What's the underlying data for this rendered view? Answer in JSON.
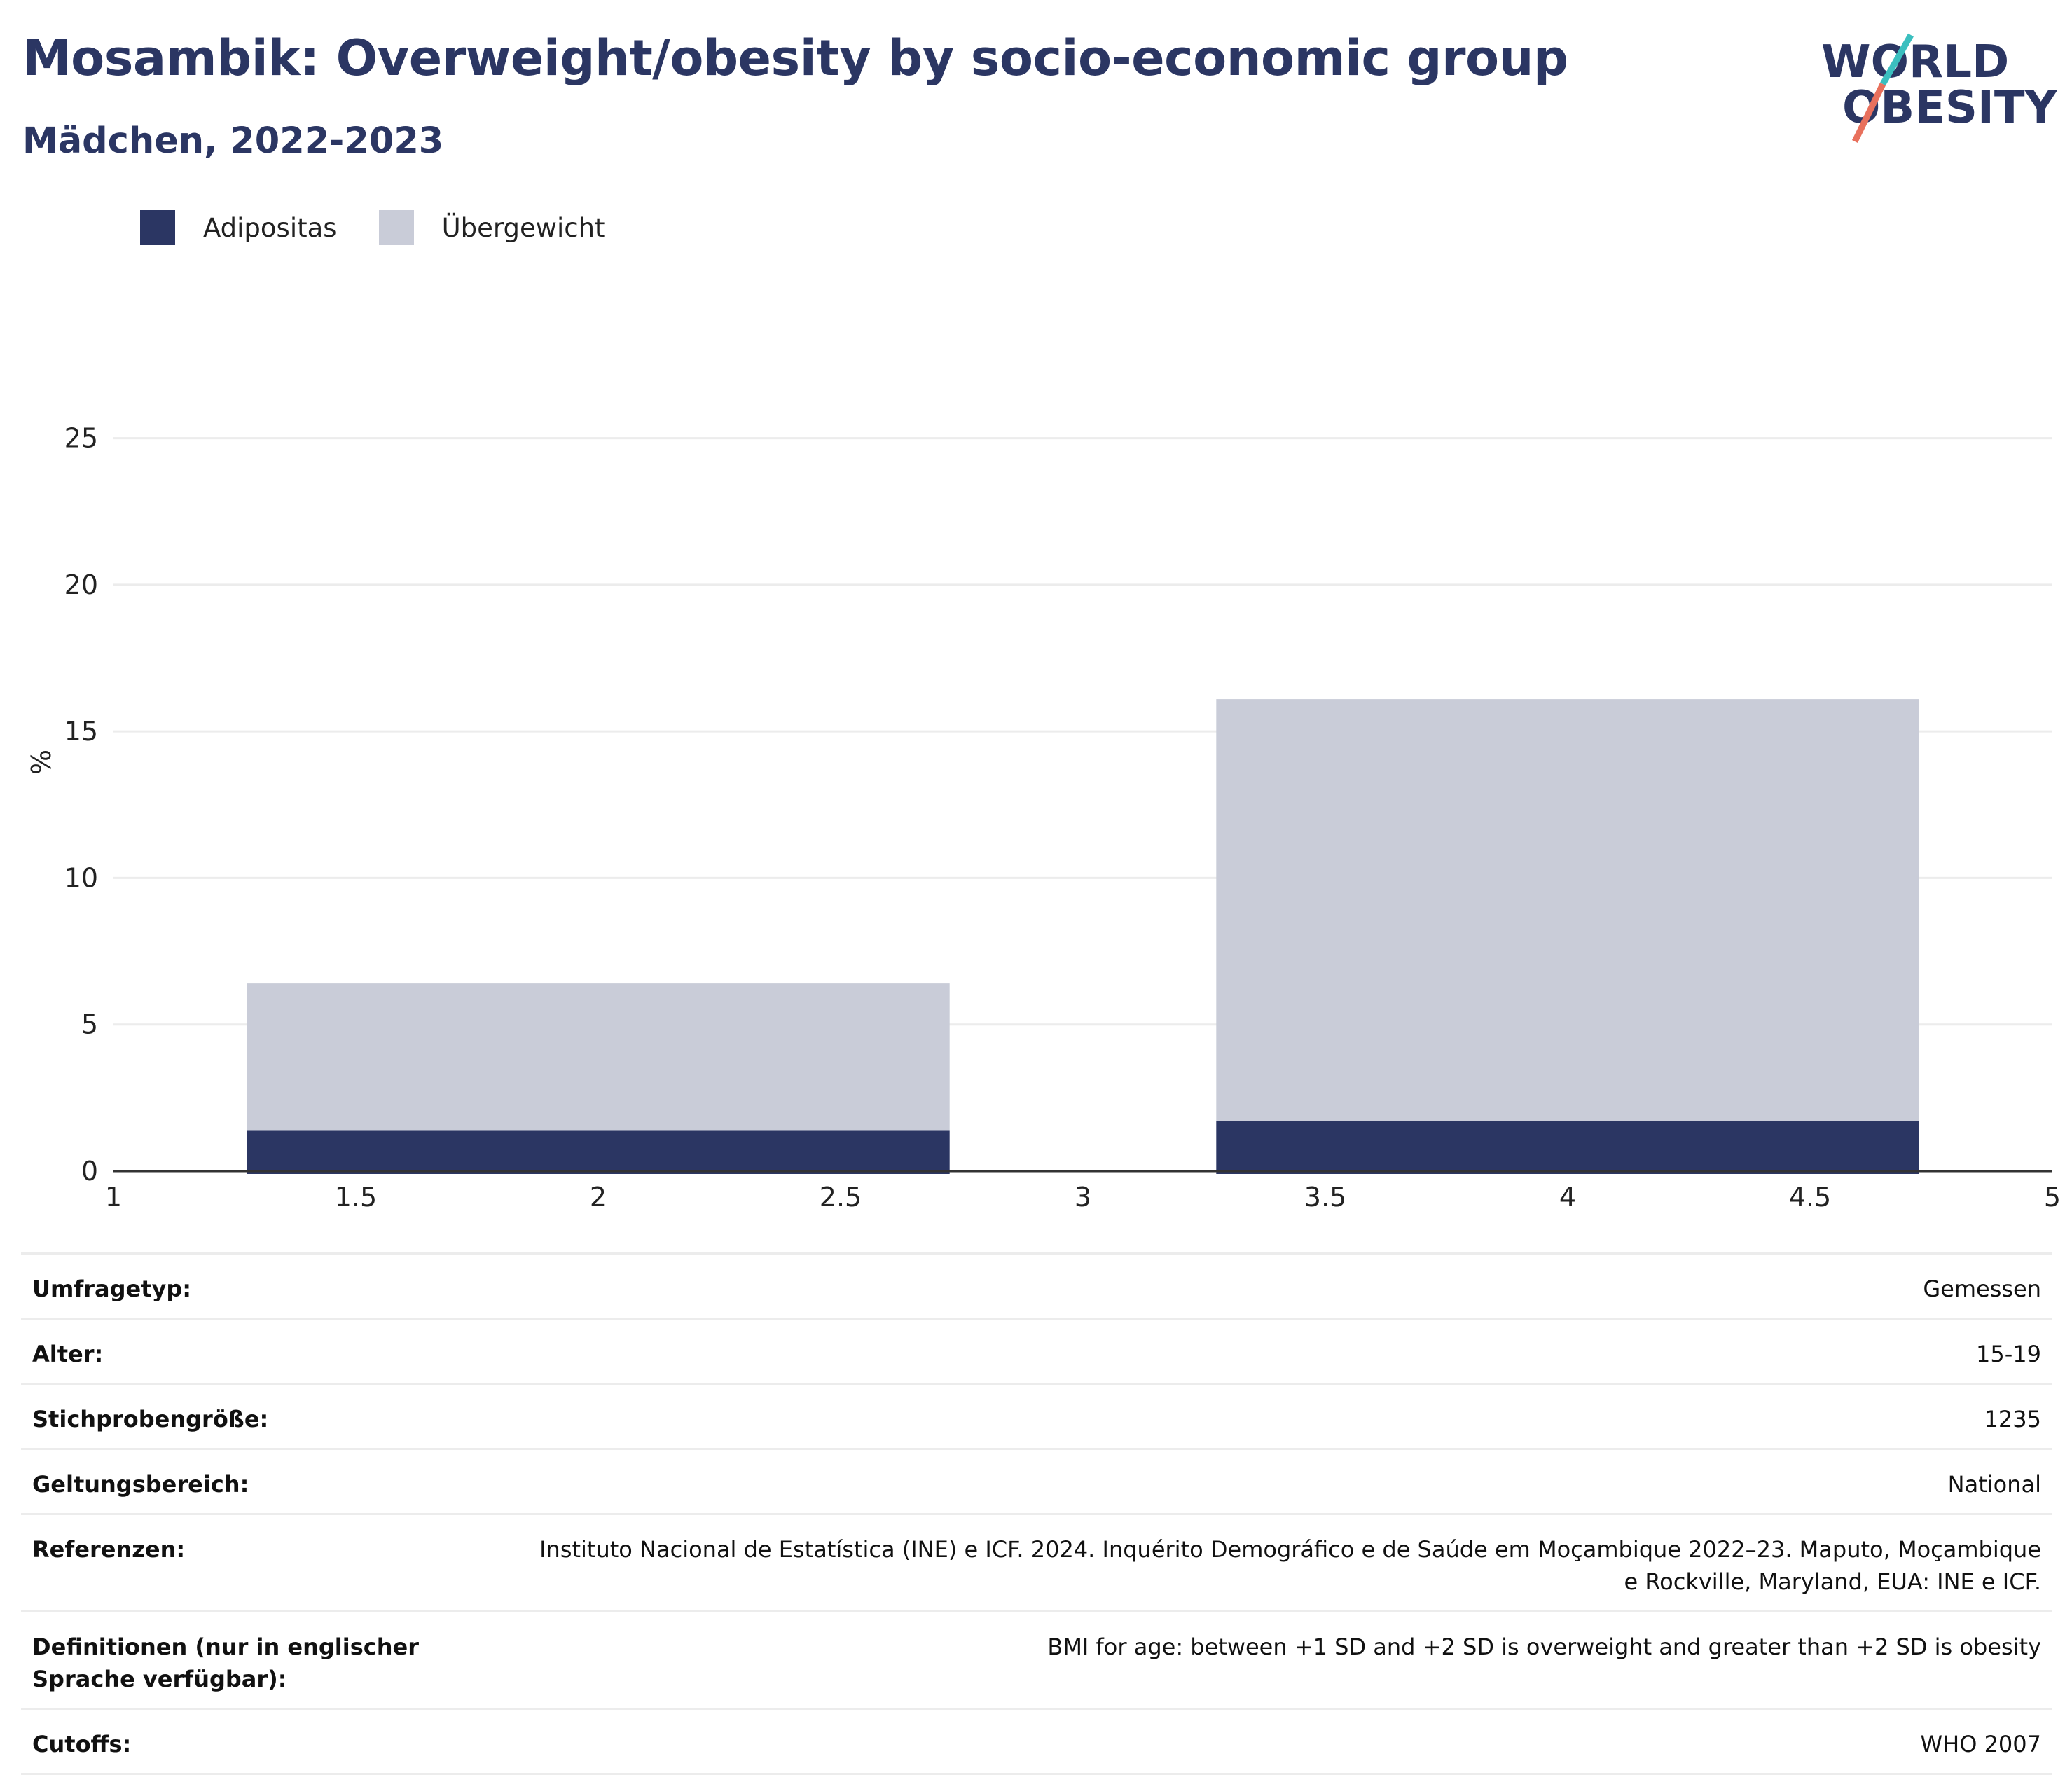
{
  "header": {
    "title": "Mosambik: Overweight/obesity by socio-economic group",
    "subtitle": "Mädchen, 2022-2023"
  },
  "logo": {
    "line1": "WORLD",
    "line2": "OBESITY",
    "accent_teal": "#3bbfbf",
    "accent_coral": "#e8705c"
  },
  "colors": {
    "adipositas": "#2b3663",
    "uebergewicht": "#c9ccd8",
    "text": "#2b3663"
  },
  "chart_data": {
    "type": "bar",
    "stacked": true,
    "title": "",
    "xlabel": "",
    "ylabel": "%",
    "xlim": [
      1,
      5
    ],
    "ylim": [
      0,
      28
    ],
    "x_ticks": [
      "1",
      "1.5",
      "2",
      "2.5",
      "3",
      "3.5",
      "4",
      "4.5",
      "5"
    ],
    "y_ticks": [
      "0",
      "5",
      "10",
      "15",
      "20",
      "25"
    ],
    "grid": true,
    "legend_position": "top-left",
    "bar_centers": [
      2,
      4
    ],
    "bar_width": 1.45,
    "series": [
      {
        "name": "Adipositas",
        "values": [
          1.4,
          1.7
        ]
      },
      {
        "name": "Übergewicht",
        "values": [
          5.0,
          14.4
        ]
      }
    ]
  },
  "info": [
    {
      "label": "Umfragetyp:",
      "value": "Gemessen"
    },
    {
      "label": "Alter:",
      "value": "15-19"
    },
    {
      "label": "Stichprobengröße:",
      "value": "1235"
    },
    {
      "label": "Geltungsbereich:",
      "value": "National"
    },
    {
      "label": "Referenzen:",
      "value": "Instituto Nacional de Estatística (INE) e ICF. 2024. Inquérito Demográfico e de Saúde em Moçambique 2022–23. Maputo, Moçambique e Rockville, Maryland, EUA: INE e ICF."
    },
    {
      "label": "Definitionen (nur in englischer Sprache verfügbar):",
      "value": "BMI for age: between +1 SD and +2 SD is overweight and greater than +2 SD is obesity"
    },
    {
      "label": "Cutoffs:",
      "value": "WHO 2007"
    }
  ]
}
